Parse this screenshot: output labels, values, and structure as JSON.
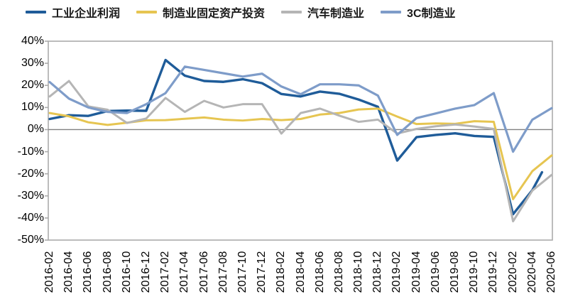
{
  "chart_data": {
    "type": "line",
    "title": "",
    "xlabel": "",
    "ylabel": "",
    "ylim": [
      -50,
      40
    ],
    "y_ticks": [
      40,
      30,
      20,
      10,
      0,
      -10,
      -20,
      -30,
      -40,
      -50
    ],
    "y_tick_suffix": "%",
    "grid": "zero-line-only",
    "legend_position": "top",
    "axis_color": "#ababab",
    "zero_line_color": "#808080",
    "categories": [
      "2016-02",
      "2016-04",
      "2016-06",
      "2016-08",
      "2016-10",
      "2016-12",
      "2017-02",
      "2017-04",
      "2017-06",
      "2017-08",
      "2017-10",
      "2017-12",
      "2018-02",
      "2018-04",
      "2018-06",
      "2018-08",
      "2018-10",
      "2018-12",
      "2019-02",
      "2019-04",
      "2019-06",
      "2019-08",
      "2019-10",
      "2019-12",
      "2020-02",
      "2020-04",
      "2020-06"
    ],
    "series": [
      {
        "name": "工业企业利润",
        "color": "#1F5C99",
        "stroke_width": 3.4,
        "values": [
          4.8,
          6.5,
          6.2,
          8.4,
          8.6,
          8.5,
          31.5,
          24.4,
          22.0,
          21.6,
          22.8,
          21.0,
          16.1,
          15.0,
          17.2,
          16.2,
          13.6,
          10.3,
          -14.0,
          -3.4,
          -2.4,
          -1.7,
          -2.9,
          -3.3,
          -38.3,
          -27.4,
          null
        ],
        "extra_point": {
          "index": 25.5,
          "value": -19.3
        }
      },
      {
        "name": "制造业固定资产投资",
        "color": "#E6C551",
        "stroke_width": 3,
        "values": [
          7.5,
          6.0,
          3.3,
          2.1,
          3.1,
          4.2,
          4.3,
          4.9,
          5.5,
          4.5,
          4.1,
          4.8,
          4.3,
          4.8,
          6.8,
          7.5,
          9.1,
          9.5,
          5.9,
          2.5,
          2.8,
          2.6,
          3.8,
          3.5,
          -31.5,
          -18.8,
          -11.7
        ]
      },
      {
        "name": "汽车制造业",
        "color": "#B5B5B5",
        "stroke_width": 3,
        "values": [
          15.0,
          22.0,
          10.5,
          9.0,
          3.0,
          5.0,
          14.3,
          8.0,
          13.0,
          10.0,
          11.5,
          11.5,
          -1.8,
          7.5,
          9.5,
          6.3,
          3.5,
          4.5,
          -1.8,
          0.3,
          1.5,
          2.3,
          1.4,
          0.3,
          -41.5,
          -27.6,
          -20.5
        ]
      },
      {
        "name": "3C制造业",
        "color": "#7E9CC9",
        "stroke_width": 3.2,
        "values": [
          21.5,
          14.0,
          10.0,
          8.0,
          7.5,
          11.5,
          16.5,
          28.5,
          27.0,
          25.5,
          24.0,
          25.3,
          19.5,
          16.0,
          20.5,
          20.5,
          20.0,
          15.4,
          -2.4,
          5.2,
          7.3,
          9.5,
          11.1,
          16.5,
          -10.0,
          4.5,
          9.7
        ]
      }
    ]
  }
}
